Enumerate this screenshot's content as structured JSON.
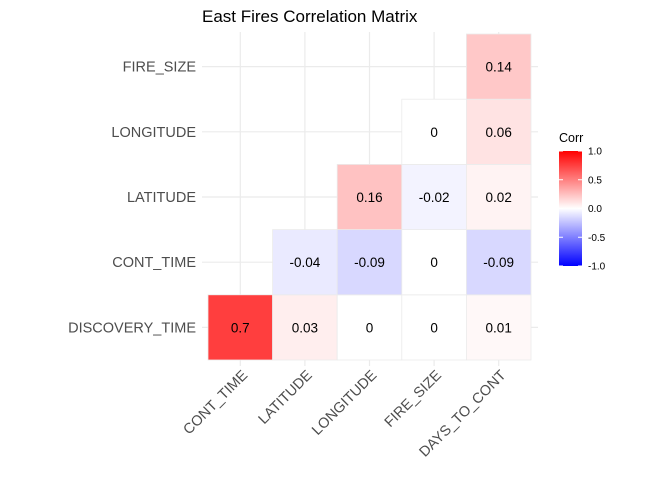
{
  "chart_data": {
    "type": "heatmap",
    "title": "East Fires Correlation Matrix",
    "x_categories": [
      "CONT_TIME",
      "LATITUDE",
      "LONGITUDE",
      "FIRE_SIZE",
      "DAYS_TO_CONT"
    ],
    "y_categories": [
      "DISCOVERY_TIME",
      "CONT_TIME",
      "LATITUDE",
      "LONGITUDE",
      "FIRE_SIZE"
    ],
    "cells": [
      {
        "x": "CONT_TIME",
        "y": "DISCOVERY_TIME",
        "value": 0.7,
        "label": "0.7"
      },
      {
        "x": "LATITUDE",
        "y": "DISCOVERY_TIME",
        "value": 0.03,
        "label": "0.03"
      },
      {
        "x": "LONGITUDE",
        "y": "DISCOVERY_TIME",
        "value": 0,
        "label": "0"
      },
      {
        "x": "FIRE_SIZE",
        "y": "DISCOVERY_TIME",
        "value": 0,
        "label": "0"
      },
      {
        "x": "DAYS_TO_CONT",
        "y": "DISCOVERY_TIME",
        "value": 0.01,
        "label": "0.01"
      },
      {
        "x": "LATITUDE",
        "y": "CONT_TIME",
        "value": -0.04,
        "label": "-0.04"
      },
      {
        "x": "LONGITUDE",
        "y": "CONT_TIME",
        "value": -0.09,
        "label": "-0.09"
      },
      {
        "x": "FIRE_SIZE",
        "y": "CONT_TIME",
        "value": 0,
        "label": "0"
      },
      {
        "x": "DAYS_TO_CONT",
        "y": "CONT_TIME",
        "value": -0.09,
        "label": "-0.09"
      },
      {
        "x": "LONGITUDE",
        "y": "LATITUDE",
        "value": 0.16,
        "label": "0.16"
      },
      {
        "x": "FIRE_SIZE",
        "y": "LATITUDE",
        "value": -0.02,
        "label": "-0.02"
      },
      {
        "x": "DAYS_TO_CONT",
        "y": "LATITUDE",
        "value": 0.02,
        "label": "0.02"
      },
      {
        "x": "FIRE_SIZE",
        "y": "LONGITUDE",
        "value": 0,
        "label": "0"
      },
      {
        "x": "DAYS_TO_CONT",
        "y": "LONGITUDE",
        "value": 0.06,
        "label": "0.06"
      },
      {
        "x": "DAYS_TO_CONT",
        "y": "FIRE_SIZE",
        "value": 0.14,
        "label": "0.14"
      }
    ],
    "color_scale": {
      "low": "#0000ff",
      "mid": "#ffffff",
      "high": "#ff0000",
      "limits": [
        -1,
        1
      ]
    },
    "legend": {
      "title": "Corr",
      "position": "right",
      "ticks": [
        {
          "value": 1,
          "label": "1.0"
        },
        {
          "value": 0.5,
          "label": "0.5"
        },
        {
          "value": 0,
          "label": "0.0"
        },
        {
          "value": -0.5,
          "label": "-0.5"
        },
        {
          "value": -1,
          "label": "-1.0"
        }
      ]
    },
    "grid": true
  }
}
